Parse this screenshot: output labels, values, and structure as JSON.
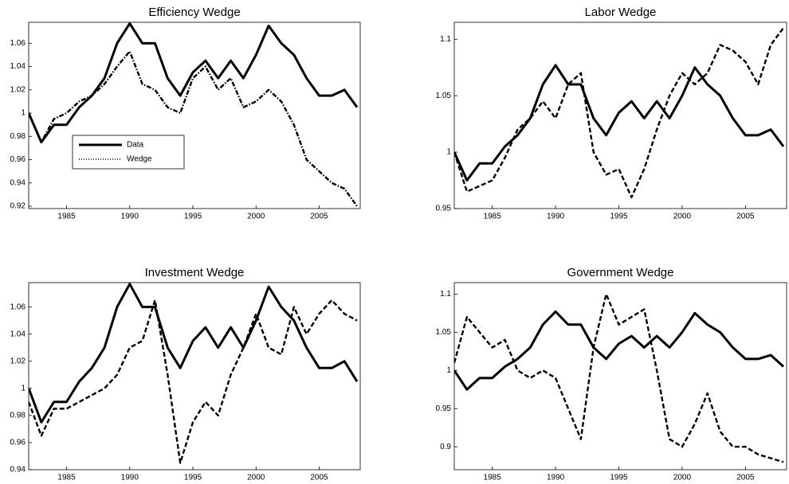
{
  "chart_data": [
    {
      "type": "line",
      "title": "Efficiency Wedge",
      "legend": "lower left",
      "x": [
        1982,
        1983,
        1984,
        1985,
        1986,
        1987,
        1988,
        1989,
        1990,
        1991,
        1992,
        1993,
        1994,
        1995,
        1996,
        1997,
        1998,
        1999,
        2000,
        2001,
        2002,
        2003,
        2004,
        2005,
        2006,
        2007,
        2008
      ],
      "xlim": [
        1982,
        2008.25
      ],
      "xticks": [
        1985,
        1990,
        1995,
        2000,
        2005
      ],
      "ylim": [
        0.918,
        1.078
      ],
      "yticks": [
        0.92,
        0.94,
        0.96,
        0.98,
        1,
        1.02,
        1.04,
        1.06
      ],
      "series": [
        {
          "name": "Data",
          "color": "#000000",
          "style": "solid",
          "values": [
            1.0,
            0.975,
            0.99,
            0.99,
            1.005,
            1.015,
            1.03,
            1.06,
            1.077,
            1.06,
            1.06,
            1.03,
            1.015,
            1.035,
            1.045,
            1.03,
            1.045,
            1.03,
            1.05,
            1.075,
            1.06,
            1.05,
            1.03,
            1.015,
            1.015,
            1.02,
            1.005
          ]
        },
        {
          "name": "Wedge",
          "color": "#000000",
          "style": "dashdot",
          "values": [
            1.0,
            0.975,
            0.995,
            1.0,
            1.01,
            1.015,
            1.025,
            1.04,
            1.053,
            1.025,
            1.02,
            1.005,
            1.0,
            1.03,
            1.04,
            1.02,
            1.03,
            1.005,
            1.01,
            1.02,
            1.01,
            0.99,
            0.96,
            0.95,
            0.94,
            0.935,
            0.92
          ]
        }
      ]
    },
    {
      "type": "line",
      "title": "Labor Wedge",
      "x": [
        1982,
        1983,
        1984,
        1985,
        1986,
        1987,
        1988,
        1989,
        1990,
        1991,
        1992,
        1993,
        1994,
        1995,
        1996,
        1997,
        1998,
        1999,
        2000,
        2001,
        2002,
        2003,
        2004,
        2005,
        2006,
        2007,
        2008
      ],
      "xlim": [
        1982,
        2008.25
      ],
      "xticks": [
        1985,
        1990,
        1995,
        2000,
        2005
      ],
      "ylim": [
        0.95,
        1.115
      ],
      "yticks": [
        0.95,
        1,
        1.05,
        1.1
      ],
      "series": [
        {
          "name": "Data",
          "color": "#000000",
          "style": "solid",
          "values": [
            1.0,
            0.975,
            0.99,
            0.99,
            1.005,
            1.015,
            1.03,
            1.06,
            1.077,
            1.06,
            1.06,
            1.03,
            1.015,
            1.035,
            1.045,
            1.03,
            1.045,
            1.03,
            1.05,
            1.075,
            1.06,
            1.05,
            1.03,
            1.015,
            1.015,
            1.02,
            1.005
          ]
        },
        {
          "name": "Wedge",
          "color": "#000000",
          "style": "dashed",
          "values": [
            1.0,
            0.965,
            0.97,
            0.975,
            0.995,
            1.02,
            1.03,
            1.045,
            1.03,
            1.06,
            1.07,
            1.0,
            0.98,
            0.985,
            0.96,
            0.985,
            1.02,
            1.05,
            1.07,
            1.06,
            1.07,
            1.095,
            1.09,
            1.08,
            1.06,
            1.095,
            1.11
          ]
        }
      ]
    },
    {
      "type": "line",
      "title": "Investment Wedge",
      "x": [
        1982,
        1983,
        1984,
        1985,
        1986,
        1987,
        1988,
        1989,
        1990,
        1991,
        1992,
        1993,
        1994,
        1995,
        1996,
        1997,
        1998,
        1999,
        2000,
        2001,
        2002,
        2003,
        2004,
        2005,
        2006,
        2007,
        2008
      ],
      "xlim": [
        1982,
        2008.25
      ],
      "xticks": [
        1985,
        1990,
        1995,
        2000,
        2005
      ],
      "ylim": [
        0.94,
        1.078
      ],
      "yticks": [
        0.94,
        0.96,
        0.98,
        1,
        1.02,
        1.04,
        1.06
      ],
      "series": [
        {
          "name": "Data",
          "color": "#000000",
          "style": "solid",
          "values": [
            1.0,
            0.975,
            0.99,
            0.99,
            1.005,
            1.015,
            1.03,
            1.06,
            1.077,
            1.06,
            1.06,
            1.03,
            1.015,
            1.035,
            1.045,
            1.03,
            1.045,
            1.03,
            1.05,
            1.075,
            1.06,
            1.05,
            1.03,
            1.015,
            1.015,
            1.02,
            1.005
          ]
        },
        {
          "name": "Wedge",
          "color": "#000000",
          "style": "dashed",
          "values": [
            0.99,
            0.965,
            0.985,
            0.985,
            0.99,
            0.995,
            1.0,
            1.01,
            1.03,
            1.035,
            1.065,
            1.01,
            0.945,
            0.975,
            0.99,
            0.98,
            1.01,
            1.03,
            1.055,
            1.03,
            1.025,
            1.06,
            1.04,
            1.055,
            1.065,
            1.055,
            1.05
          ]
        }
      ]
    },
    {
      "type": "line",
      "title": "Government Wedge",
      "x": [
        1982,
        1983,
        1984,
        1985,
        1986,
        1987,
        1988,
        1989,
        1990,
        1991,
        1992,
        1993,
        1994,
        1995,
        1996,
        1997,
        1998,
        1999,
        2000,
        2001,
        2002,
        2003,
        2004,
        2005,
        2006,
        2007,
        2008
      ],
      "xlim": [
        1982,
        2008.25
      ],
      "xticks": [
        1985,
        1990,
        1995,
        2000,
        2005
      ],
      "ylim": [
        0.87,
        1.115
      ],
      "yticks": [
        0.9,
        0.95,
        1,
        1.05,
        1.1
      ],
      "series": [
        {
          "name": "Data",
          "color": "#000000",
          "style": "solid",
          "values": [
            1.0,
            0.975,
            0.99,
            0.99,
            1.005,
            1.015,
            1.03,
            1.06,
            1.077,
            1.06,
            1.06,
            1.03,
            1.015,
            1.035,
            1.045,
            1.03,
            1.045,
            1.03,
            1.05,
            1.075,
            1.06,
            1.05,
            1.03,
            1.015,
            1.015,
            1.02,
            1.005
          ]
        },
        {
          "name": "Wedge",
          "color": "#000000",
          "style": "dashed",
          "values": [
            1.01,
            1.07,
            1.05,
            1.03,
            1.04,
            1.0,
            0.99,
            1.0,
            0.99,
            0.95,
            0.91,
            1.03,
            1.1,
            1.06,
            1.07,
            1.08,
            1.0,
            0.91,
            0.9,
            0.93,
            0.97,
            0.92,
            0.9,
            0.9,
            0.89,
            0.885,
            0.88
          ]
        }
      ]
    }
  ]
}
